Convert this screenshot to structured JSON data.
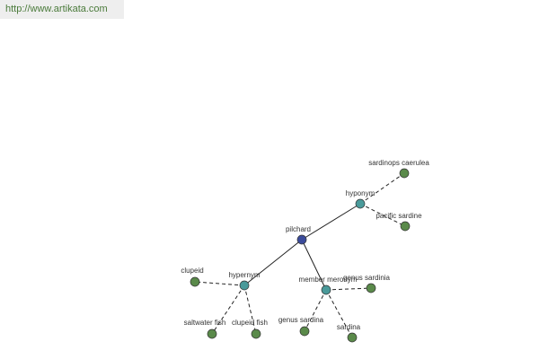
{
  "url": "http://www.artikata.com",
  "nodes": [
    {
      "label": "pilchard"
    },
    {
      "label": "hyponym"
    },
    {
      "label": "sardinops caerulea"
    },
    {
      "label": "pacific sardine"
    },
    {
      "label": "hypernym"
    },
    {
      "label": "clupeid"
    },
    {
      "label": "saltwater fish"
    },
    {
      "label": "clupeid fish"
    },
    {
      "label": "member meronym"
    },
    {
      "label": "genus sardinia"
    },
    {
      "label": "genus sardina"
    },
    {
      "label": "sardina"
    }
  ]
}
